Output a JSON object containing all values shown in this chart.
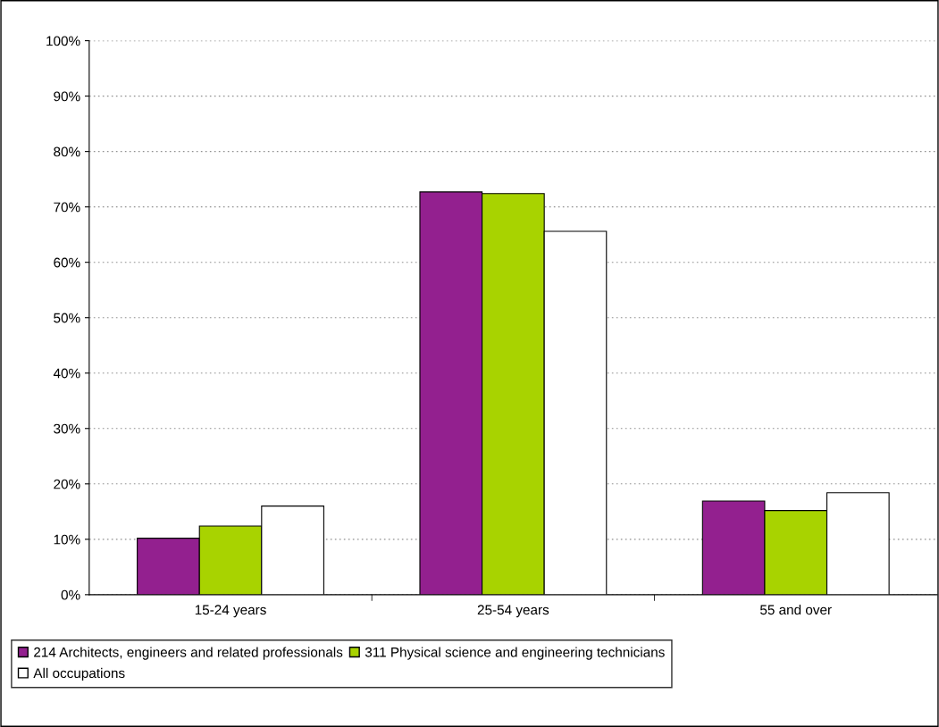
{
  "chart_data": {
    "type": "bar",
    "categories": [
      "15-24 years",
      "25-54 years",
      "55 and over"
    ],
    "series": [
      {
        "name": "214 Architects, engineers and related professionals",
        "color": "#93208f",
        "values": [
          10.2,
          72.7,
          16.9
        ]
      },
      {
        "name": "311 Physical science and engineering technicians",
        "color": "#a8d300",
        "values": [
          12.4,
          72.4,
          15.2
        ]
      },
      {
        "name": "All occupations",
        "color": "#ffffff",
        "values": [
          16.0,
          65.6,
          18.4
        ]
      }
    ],
    "ylim": [
      0,
      100
    ],
    "yticks": [
      {
        "value": 0,
        "label": "0%"
      },
      {
        "value": 10,
        "label": "10%"
      },
      {
        "value": 20,
        "label": "20%"
      },
      {
        "value": 30,
        "label": "30%"
      },
      {
        "value": 40,
        "label": "40%"
      },
      {
        "value": 50,
        "label": "50%"
      },
      {
        "value": 60,
        "label": "60%"
      },
      {
        "value": 70,
        "label": "70%"
      },
      {
        "value": 80,
        "label": "80%"
      },
      {
        "value": 90,
        "label": "90%"
      },
      {
        "value": 100,
        "label": "100%"
      }
    ],
    "grid": "y",
    "legend": "bottom"
  }
}
